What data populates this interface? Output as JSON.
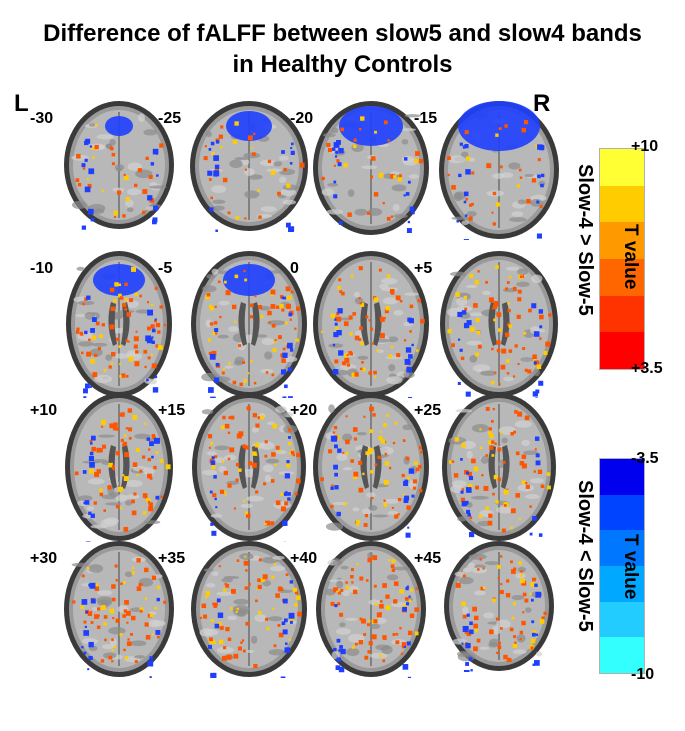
{
  "title": {
    "line1": "Difference of fALFF between slow5 and slow4 bands",
    "line2": "in Healthy Controls"
  },
  "orientation": {
    "left": "L",
    "right": "R"
  },
  "rows": [
    {
      "slices": [
        "-30",
        "-25",
        "-20",
        "-15"
      ]
    },
    {
      "slices": [
        "-10",
        "-5",
        "0",
        "+5"
      ]
    },
    {
      "slices": [
        "+10",
        "+15",
        "+20",
        "+25"
      ]
    },
    {
      "slices": [
        "+30",
        "+35",
        "+40",
        "+45"
      ]
    }
  ],
  "colorbars": [
    {
      "name": "positive",
      "condition": "Slow-4 > Slow-5",
      "measure": "T value",
      "top_tick": "+10",
      "bottom_tick": "+3.5",
      "colors": [
        "#ffff33",
        "#ffcc00",
        "#ff9900",
        "#ff6600",
        "#ff3300",
        "#ff0000"
      ]
    },
    {
      "name": "negative",
      "condition": "Slow-4 < Slow-5",
      "measure": "T value",
      "top_tick": "-3.5",
      "bottom_tick": "-10",
      "colors": [
        "#0000ee",
        "#0044ff",
        "#0077ff",
        "#00a8ff",
        "#22ccff",
        "#33ffff"
      ]
    }
  ],
  "colors": {
    "positive_blob": "#ff5500",
    "positive_hot": "#ffcc00",
    "negative_blob": "#1f3fff"
  }
}
